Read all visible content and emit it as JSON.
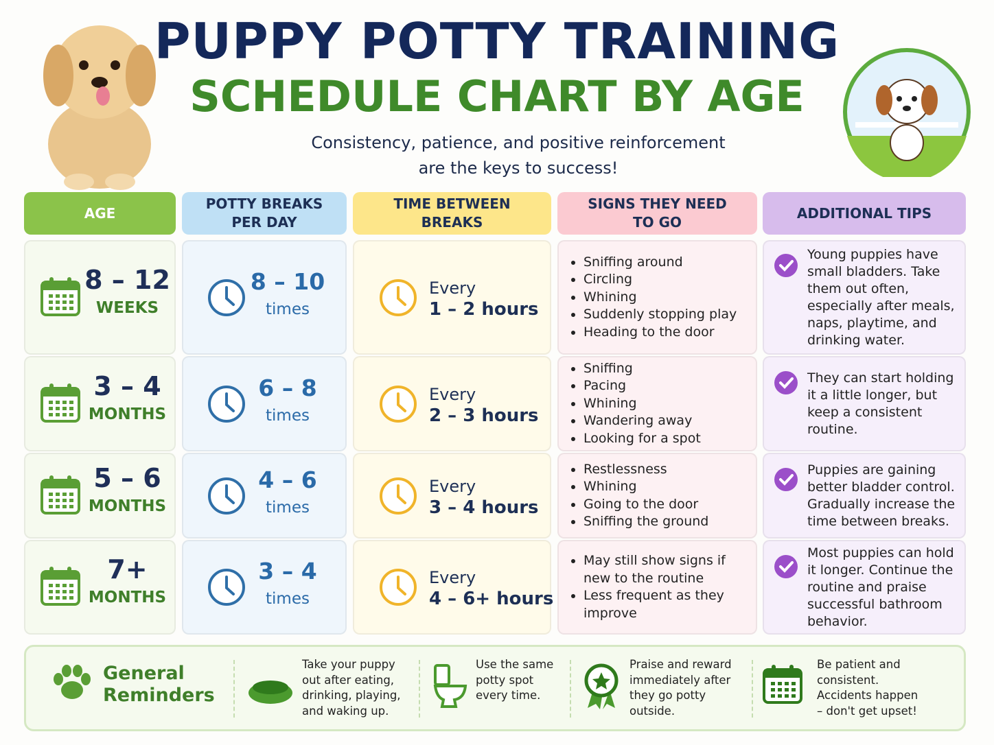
{
  "header": {
    "title": "PUPPY POTTY TRAINING",
    "subtitle": "SCHEDULE CHART BY AGE",
    "tagline": "Consistency, patience, and positive reinforcement are the keys to success!"
  },
  "table": {
    "columns": [
      "AGE",
      "POTTY BREAKS PER DAY",
      "TIME BETWEEN BREAKS",
      "SIGNS THEY NEED TO GO",
      "ADDITIONAL TIPS"
    ],
    "rows": [
      {
        "age": "8 – 12",
        "age_unit": "WEEKS",
        "breaks": "8 – 10",
        "breaks_unit": "times",
        "time_prefix": "Every",
        "time": "1 – 2 hours",
        "signs": [
          "Sniffing around",
          "Circling",
          "Whining",
          "Suddenly stopping play",
          "Heading to the door"
        ],
        "tip": "Young puppies have small bladders. Take them out often, especially after meals, naps, playtime, and drinking water."
      },
      {
        "age": "3 – 4",
        "age_unit": "MONTHS",
        "breaks": "6 – 8",
        "breaks_unit": "times",
        "time_prefix": "Every",
        "time": "2 – 3 hours",
        "signs": [
          "Sniffing",
          "Pacing",
          "Whining",
          "Wandering away",
          "Looking for a spot"
        ],
        "tip": "They can start holding it a little longer, but keep a consistent routine."
      },
      {
        "age": "5 – 6",
        "age_unit": "MONTHS",
        "breaks": "4 – 6",
        "breaks_unit": "times",
        "time_prefix": "Every",
        "time": "3 – 4 hours",
        "signs": [
          "Restlessness",
          "Whining",
          "Going to the door",
          "Sniffing the ground"
        ],
        "tip": "Puppies are gaining better bladder control. Gradually increase the time between breaks."
      },
      {
        "age": "7+",
        "age_unit": "MONTHS",
        "breaks": "3 – 4",
        "breaks_unit": "times",
        "time_prefix": "Every",
        "time": "4 – 6+ hours",
        "signs": [
          "May still show signs if new to the routine",
          "Less frequent as they improve"
        ],
        "tip": "Most puppies can hold it longer. Continue the routine and praise successful bathroom behavior."
      }
    ]
  },
  "reminders": {
    "title": "General Reminders",
    "items": [
      "Take your puppy out after eating, drinking, playing, and waking up.",
      "Use the same potty spot every time.",
      "Praise and reward immediately after they go potty outside.",
      "Be patient and consistent. Accidents happen – don't get upset!"
    ]
  }
}
